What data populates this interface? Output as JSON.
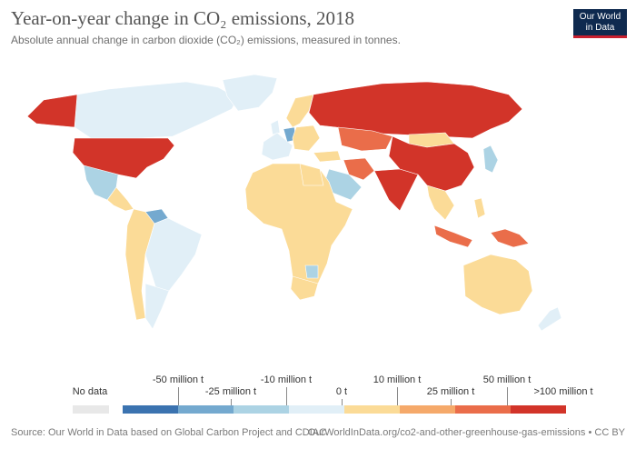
{
  "title": "Year-on-year change in CO₂ emissions, 2018",
  "subtitle": "Absolute annual change in carbon dioxide (CO₂) emissions, measured in tonnes.",
  "logo": {
    "line1": "Our World",
    "line2": "in Data",
    "bg": "#0f2a4f",
    "accent": "#c8202f"
  },
  "legend": {
    "no_data_label": "No data",
    "no_data_color": "#e8e8e8",
    "upper_labels": [
      "-50 million t",
      "-10 million t",
      "10 million t",
      "50 million t"
    ],
    "lower_labels": [
      "-25 million t",
      "0 t",
      "25 million t",
      ">100 million t"
    ],
    "bins": [
      {
        "color": "#3b73b0"
      },
      {
        "color": "#74a9cf"
      },
      {
        "color": "#acd3e4"
      },
      {
        "color": "#e1eff7"
      },
      {
        "color": "#fbdb97"
      },
      {
        "color": "#f5a96a"
      },
      {
        "color": "#ea6d4a"
      },
      {
        "color": "#d23429"
      }
    ]
  },
  "colors": {
    "ocean": "#ffffff",
    "border": "#ffffff",
    "neg_small": "#e1eff7",
    "neg_med": "#acd3e4",
    "neg_large": "#74a9cf",
    "pos_small": "#fbdb97",
    "pos_med": "#f5a96a",
    "pos_large": "#ea6d4a",
    "pos_huge": "#d23429"
  },
  "footer": {
    "source": "Source: Our World in Data based on Global Carbon Project and CDIAC",
    "url": "OurWorldInData.org/co2-and-other-greenhouse-gas-emissions • CC BY"
  }
}
